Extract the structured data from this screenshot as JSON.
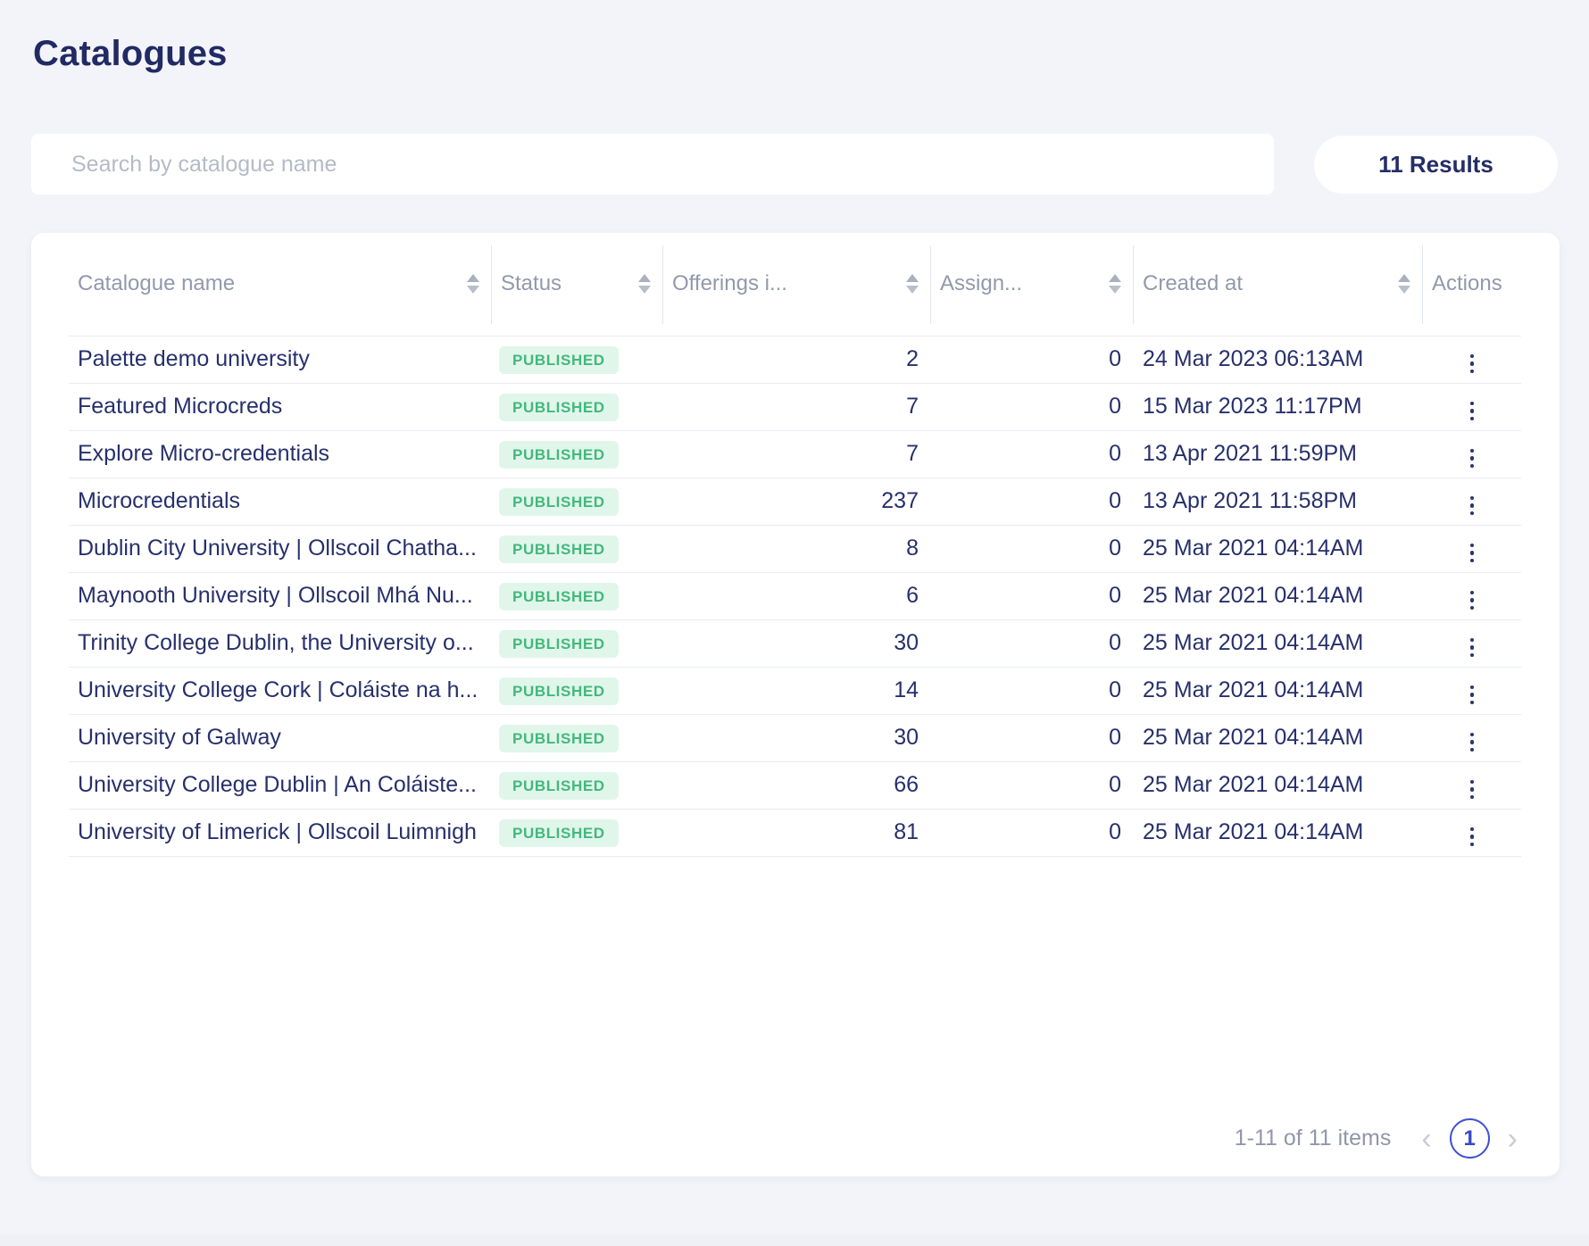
{
  "page": {
    "title": "Catalogues"
  },
  "search": {
    "placeholder": "Search by catalogue name"
  },
  "results_pill": {
    "label": "11 Results"
  },
  "table": {
    "columns": [
      {
        "label": "Catalogue name",
        "sortable": true
      },
      {
        "label": "Status",
        "sortable": true
      },
      {
        "label": "Offerings i...",
        "sortable": true
      },
      {
        "label": "Assign...",
        "sortable": true
      },
      {
        "label": "Created at",
        "sortable": true
      },
      {
        "label": "Actions",
        "sortable": false
      }
    ],
    "rows": [
      {
        "name": "Palette demo university",
        "status": "PUBLISHED",
        "offerings": "2",
        "assigned": "0",
        "created": "24 Mar 2023 06:13AM"
      },
      {
        "name": "Featured Microcreds",
        "status": "PUBLISHED",
        "offerings": "7",
        "assigned": "0",
        "created": "15 Mar 2023 11:17PM"
      },
      {
        "name": "Explore Micro-credentials",
        "status": "PUBLISHED",
        "offerings": "7",
        "assigned": "0",
        "created": "13 Apr 2021 11:59PM"
      },
      {
        "name": "Microcredentials",
        "status": "PUBLISHED",
        "offerings": "237",
        "assigned": "0",
        "created": "13 Apr 2021 11:58PM"
      },
      {
        "name": "Dublin City University | Ollscoil Chatha...",
        "status": "PUBLISHED",
        "offerings": "8",
        "assigned": "0",
        "created": "25 Mar 2021 04:14AM"
      },
      {
        "name": "Maynooth University | Ollscoil Mhá Nu...",
        "status": "PUBLISHED",
        "offerings": "6",
        "assigned": "0",
        "created": "25 Mar 2021 04:14AM"
      },
      {
        "name": "Trinity College Dublin, the University o...",
        "status": "PUBLISHED",
        "offerings": "30",
        "assigned": "0",
        "created": "25 Mar 2021 04:14AM"
      },
      {
        "name": "University College Cork | Coláiste na h...",
        "status": "PUBLISHED",
        "offerings": "14",
        "assigned": "0",
        "created": "25 Mar 2021 04:14AM"
      },
      {
        "name": "University of Galway",
        "status": "PUBLISHED",
        "offerings": "30",
        "assigned": "0",
        "created": "25 Mar 2021 04:14AM"
      },
      {
        "name": "University College Dublin | An Coláiste...",
        "status": "PUBLISHED",
        "offerings": "66",
        "assigned": "0",
        "created": "25 Mar 2021 04:14AM"
      },
      {
        "name": "University of Limerick | Ollscoil Luimnigh",
        "status": "PUBLISHED",
        "offerings": "81",
        "assigned": "0",
        "created": "25 Mar 2021 04:14AM"
      }
    ]
  },
  "pagination": {
    "summary": "1-11 of 11 items",
    "current_page": "1"
  },
  "icons": {
    "prev_chevron": "‹",
    "next_chevron": "›"
  },
  "colors": {
    "page_background": "#f3f4f9",
    "navy_text": "#27306b",
    "header_gray": "#9199ab",
    "badge_background": "#e1f6eb",
    "badge_text": "#43b87c",
    "pagination_accent_blue": "#3f51d1"
  }
}
